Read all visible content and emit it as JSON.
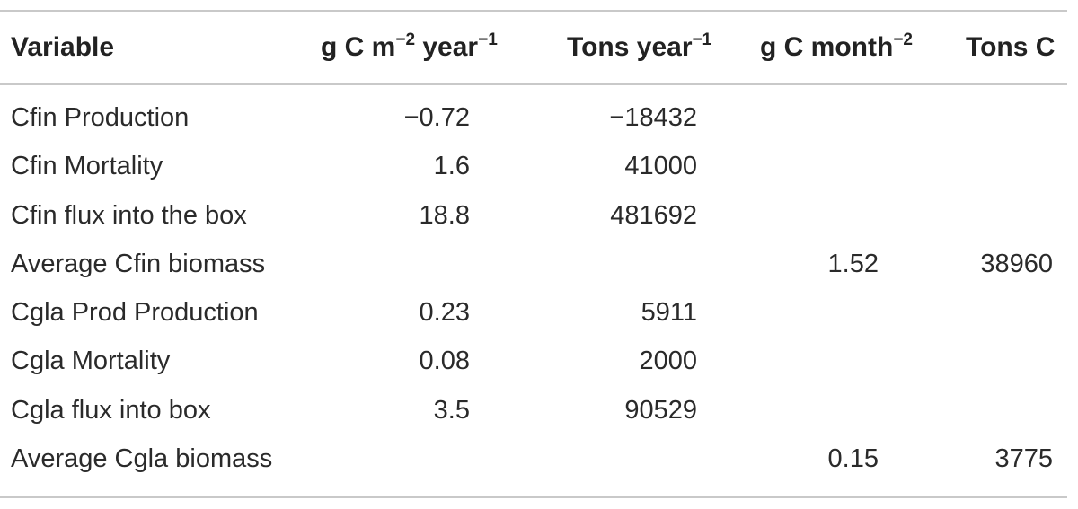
{
  "table": {
    "headers": {
      "variable": "Variable",
      "col1": {
        "base": "g C m",
        "sup1": "−2",
        "mid": " year",
        "sup2": "−1"
      },
      "col2": {
        "base": "Tons year",
        "sup": "−1"
      },
      "col3": {
        "base": "g C month",
        "sup": "−2"
      },
      "col4": "Tons C"
    },
    "rows": [
      {
        "name": "Cfin Production",
        "v1": "−0.72",
        "v2": "−18432",
        "v3": "",
        "v4": ""
      },
      {
        "name": "Cfin Mortality",
        "v1": "1.6",
        "v2": "41000",
        "v3": "",
        "v4": ""
      },
      {
        "name": "Cfin flux into the box",
        "v1": "18.8",
        "v2": "481692",
        "v3": "",
        "v4": ""
      },
      {
        "name": "Average Cfin biomass",
        "v1": "",
        "v2": "",
        "v3": "1.52",
        "v4": "38960"
      },
      {
        "name": "Cgla Prod Production",
        "v1": "0.23",
        "v2": "5911",
        "v3": "",
        "v4": ""
      },
      {
        "name": "Cgla Mortality",
        "v1": "0.08",
        "v2": "2000",
        "v3": "",
        "v4": ""
      },
      {
        "name": "Cgla flux into box",
        "v1": "3.5",
        "v2": "90529",
        "v3": "",
        "v4": ""
      },
      {
        "name": "Average Cgla biomass",
        "v1": "",
        "v2": "",
        "v3": "0.15",
        "v4": "3775"
      }
    ]
  }
}
